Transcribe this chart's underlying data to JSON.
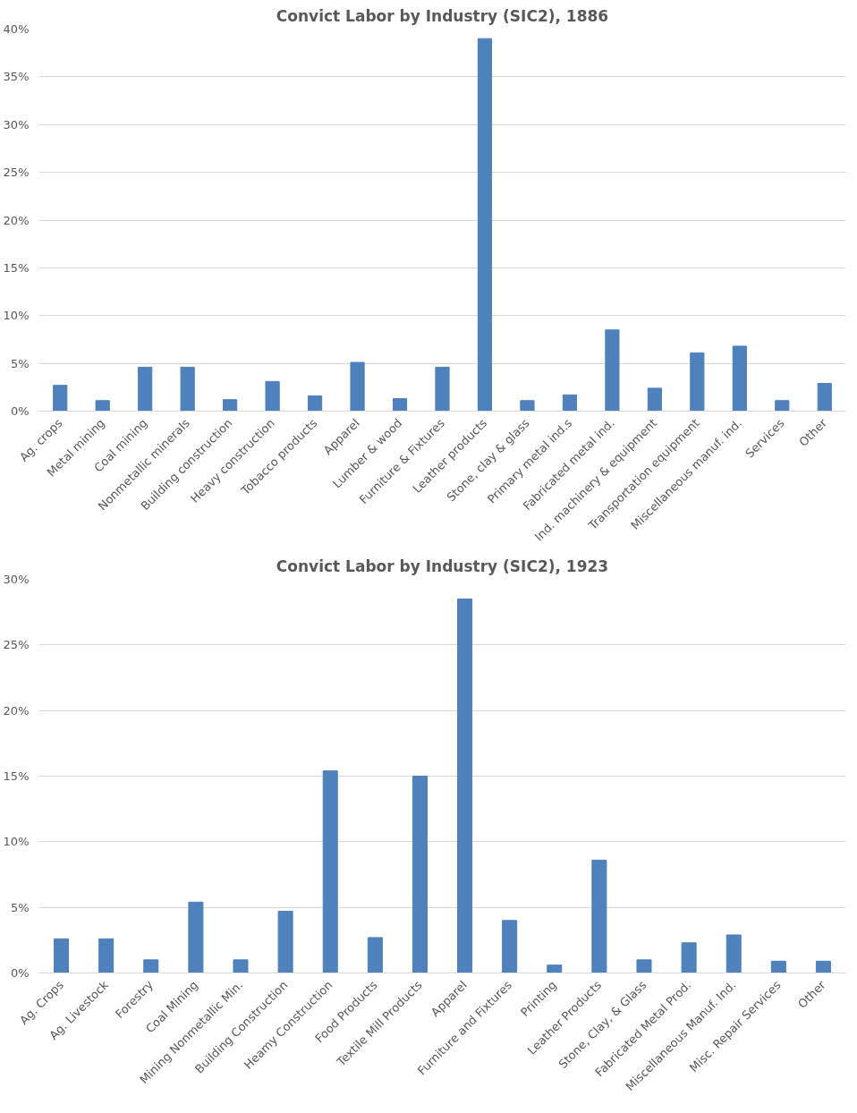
{
  "chart_data": [
    {
      "type": "bar",
      "title": "Convict Labor by Industry (SIC2), 1886",
      "categories": [
        "Ag. crops",
        "Metal mining",
        "Coal mining",
        "Nonmetallic minerals",
        "Building construction",
        "Heavy construction",
        "Tobacco products",
        "Apparel",
        "Lumber & wood",
        "Furniture & Fixtures",
        "Leather products",
        "Stone, clay & glass",
        "Primary metal ind.s",
        "Fabricated metal ind.",
        "Ind. machinery & equipment",
        "Transportation equipment",
        "Miscellaneous manuf. ind.",
        "Services",
        "Other"
      ],
      "values": [
        2.7,
        1.1,
        4.6,
        4.6,
        1.2,
        3.1,
        1.6,
        5.1,
        1.3,
        4.6,
        39.0,
        1.1,
        1.7,
        8.5,
        2.4,
        6.1,
        6.8,
        1.1,
        2.9
      ],
      "color": "#4f81bd",
      "ylim": [
        0,
        40
      ],
      "yticks": [
        {
          "value": 0,
          "label": "0%"
        },
        {
          "value": 5,
          "label": "5%"
        },
        {
          "value": 10,
          "label": "10%"
        },
        {
          "value": 15,
          "label": "15%"
        },
        {
          "value": 20,
          "label": "20%"
        },
        {
          "value": 25,
          "label": "25%"
        },
        {
          "value": 30,
          "label": "30%"
        },
        {
          "value": 35,
          "label": "35%"
        },
        {
          "value": 40,
          "label": "40%"
        }
      ],
      "grid": "y"
    },
    {
      "type": "bar",
      "title": "Convict Labor by Industry (SIC2), 1923",
      "categories": [
        "Ag. Crops",
        "Ag. Livestock",
        "Forestry",
        "Coal Mining",
        "Mining Nonmetallic Min.",
        "Building Construction",
        "Heamy Construction",
        "Food Products",
        "Textile Mill Products",
        "Apparel",
        "Furniture and Fixtures",
        "Printing",
        "Leather Products",
        "Stone, Clay, & Glass",
        "Fabricated Metal Prod.",
        "Miscellaneous Manuf. Ind.",
        "Misc. Repair Services",
        "Other"
      ],
      "values": [
        2.6,
        2.6,
        1.0,
        5.4,
        1.0,
        4.7,
        15.4,
        2.7,
        15.0,
        28.5,
        4.0,
        0.6,
        8.6,
        1.0,
        2.3,
        2.9,
        0.9,
        0.9
      ],
      "color": "#4f81bd",
      "ylim": [
        0,
        30
      ],
      "yticks": [
        {
          "value": 0,
          "label": "0%"
        },
        {
          "value": 5,
          "label": "5%"
        },
        {
          "value": 10,
          "label": "10%"
        },
        {
          "value": 15,
          "label": "15%"
        },
        {
          "value": 20,
          "label": "20%"
        },
        {
          "value": 25,
          "label": "25%"
        },
        {
          "value": 30,
          "label": "30%"
        }
      ],
      "grid": "y"
    }
  ]
}
